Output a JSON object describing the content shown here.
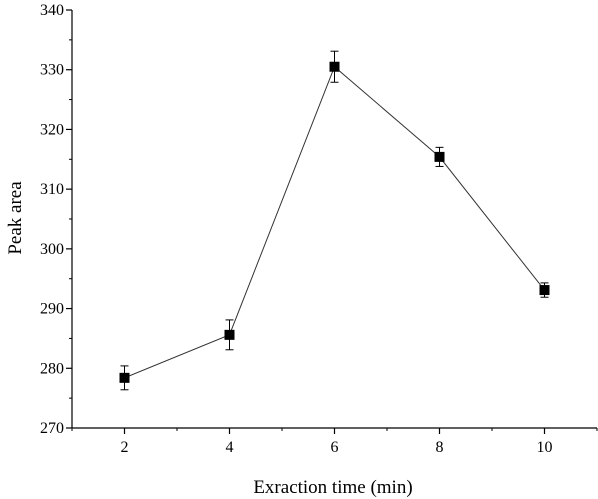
{
  "chart_data": {
    "type": "scatter",
    "title": "",
    "xlabel": "Exraction time (min)",
    "ylabel": "Peak area",
    "xlim": [
      1,
      11
    ],
    "ylim": [
      270,
      340
    ],
    "xticks": [
      2,
      4,
      6,
      8,
      10
    ],
    "yticks": [
      270,
      280,
      290,
      300,
      310,
      320,
      330,
      340
    ],
    "grid": false,
    "legend": "none",
    "series": [
      {
        "marker": "square",
        "line": true,
        "color": "#000000",
        "points": [
          {
            "x": 2,
            "y": 278.4,
            "err": 2.0
          },
          {
            "x": 4,
            "y": 285.6,
            "err": 2.5
          },
          {
            "x": 6,
            "y": 330.5,
            "err": 2.6
          },
          {
            "x": 8,
            "y": 315.4,
            "err": 1.6
          },
          {
            "x": 10,
            "y": 293.1,
            "err": 1.2
          }
        ]
      }
    ]
  }
}
